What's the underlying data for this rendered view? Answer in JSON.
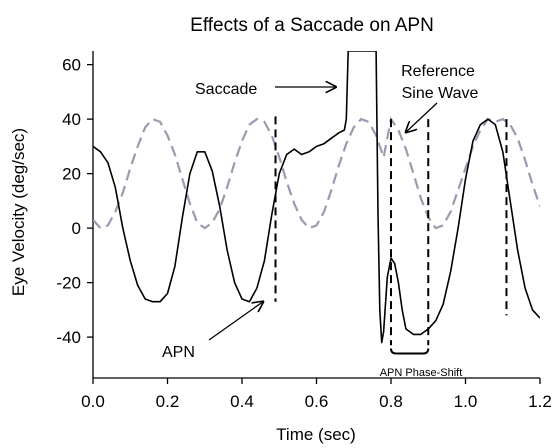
{
  "chart_data": {
    "type": "line",
    "title": "Effects of  a Saccade on APN",
    "xlabel": "Time (sec)",
    "ylabel": "Eye Velocity (deg/sec)",
    "xlim": [
      0.0,
      1.2
    ],
    "ylim": [
      -55,
      65
    ],
    "x_ticks": [
      0.0,
      0.2,
      0.4,
      0.6,
      0.8,
      1.0,
      1.2
    ],
    "x_tick_labels": [
      "0.0",
      "0.2",
      "0.4",
      "0.6",
      "0.8",
      "1.0",
      "1.2"
    ],
    "y_ticks": [
      -40,
      -20,
      0,
      20,
      40,
      60
    ],
    "y_tick_labels": [
      "-40",
      "-20",
      "0",
      "20",
      "40",
      "60"
    ],
    "grid": false,
    "legend": "none",
    "colors": {
      "eye": "#000000",
      "reference": "#9a9ab0"
    },
    "series": [
      {
        "role": "eye-velocity",
        "style": "solid",
        "x": [
          0.0,
          0.02,
          0.04,
          0.06,
          0.08,
          0.1,
          0.12,
          0.14,
          0.16,
          0.18,
          0.2,
          0.22,
          0.24,
          0.26,
          0.28,
          0.3,
          0.32,
          0.34,
          0.36,
          0.38,
          0.4,
          0.42,
          0.44,
          0.46,
          0.48,
          0.5,
          0.52,
          0.54,
          0.56,
          0.58,
          0.6,
          0.62,
          0.64,
          0.66,
          0.675,
          0.68,
          0.685,
          0.76,
          0.765,
          0.77,
          0.775,
          0.78,
          0.79,
          0.8,
          0.81,
          0.82,
          0.83,
          0.84,
          0.86,
          0.88,
          0.9,
          0.92,
          0.94,
          0.96,
          0.98,
          1.0,
          1.02,
          1.04,
          1.06,
          1.08,
          1.1,
          1.12,
          1.14,
          1.16,
          1.18,
          1.2
        ],
        "y": [
          30,
          28,
          24,
          15,
          0,
          -12,
          -21,
          -26,
          -27,
          -27,
          -24,
          -14,
          4,
          20,
          28,
          28,
          21,
          8,
          -8,
          -20,
          -26,
          -27,
          -22,
          -12,
          5,
          20,
          27,
          29,
          27,
          28,
          30,
          31,
          33,
          35,
          36,
          40,
          65,
          65,
          5,
          -30,
          -42,
          -38,
          -18,
          -11,
          -13,
          -20,
          -30,
          -37,
          -39,
          -39,
          -37,
          -34,
          -28,
          -16,
          0,
          18,
          32,
          38,
          40,
          38,
          28,
          10,
          -8,
          -22,
          -30,
          -33
        ]
      },
      {
        "role": "reference-sine-wave",
        "style": "dashed",
        "x": [
          0.0,
          0.02,
          0.04,
          0.06,
          0.08,
          0.1,
          0.12,
          0.14,
          0.16,
          0.18,
          0.2,
          0.22,
          0.24,
          0.26,
          0.28,
          0.3,
          0.32,
          0.34,
          0.36,
          0.38,
          0.4,
          0.42,
          0.44,
          0.46,
          0.48,
          0.5,
          0.52,
          0.54,
          0.56,
          0.58,
          0.6,
          0.62,
          0.64,
          0.66,
          0.68,
          0.7,
          0.72,
          0.74,
          0.76,
          0.78,
          0.8,
          0.82,
          0.84,
          0.86,
          0.88,
          0.9,
          0.92,
          0.94,
          0.96,
          0.98,
          1.0,
          1.02,
          1.04,
          1.06,
          1.08,
          1.1,
          1.12,
          1.14,
          1.16,
          1.18,
          1.2
        ],
        "y": [
          3,
          0,
          1,
          6,
          13,
          22,
          30,
          37,
          40,
          39,
          34,
          27,
          18,
          9,
          2,
          0,
          2,
          7,
          15,
          24,
          32,
          38,
          40,
          39,
          34,
          26,
          17,
          9,
          3,
          0,
          1,
          6,
          14,
          23,
          31,
          37,
          40,
          39,
          34,
          26,
          40,
          36,
          29,
          20,
          11,
          4,
          0,
          1,
          6,
          14,
          22,
          30,
          36,
          40,
          39,
          40,
          38,
          33,
          25,
          16,
          8
        ]
      }
    ],
    "annotations": {
      "saccade": "Saccade",
      "reference_line1": "Reference",
      "reference_line2": "Sine Wave",
      "apn": "APN",
      "phase_shift": "APN Phase-Shift"
    },
    "marker_lines": [
      {
        "x": 0.49,
        "y_from": 41,
        "y_to": -27
      },
      {
        "x": 0.8,
        "y_from": 40,
        "y_to": -43
      },
      {
        "x": 0.9,
        "y_from": 40,
        "y_to": -43
      },
      {
        "x": 1.11,
        "y_from": 40,
        "y_to": -32
      }
    ],
    "phase_shift_bracket": {
      "x_from": 0.8,
      "x_to": 0.9,
      "y": -46
    }
  }
}
